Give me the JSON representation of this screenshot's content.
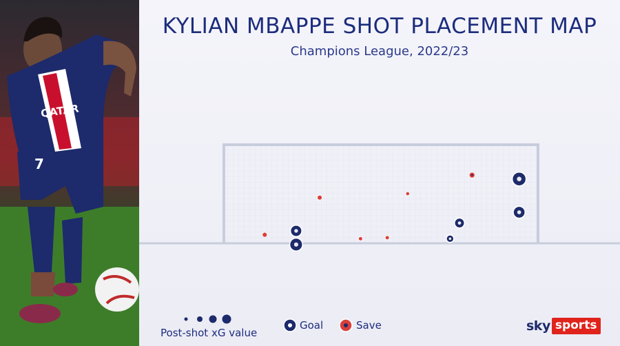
{
  "header": {
    "title": "KYLIAN MBAPPE SHOT PLACEMENT MAP",
    "subtitle": "Champions League, 2022/23"
  },
  "legend": {
    "size_label": "Post-shot xG value",
    "goal_label": "Goal",
    "save_label": "Save"
  },
  "brand": {
    "sky": "sky",
    "sports": "sports"
  },
  "colors": {
    "goal": "#1d2a6b",
    "save": "#d8403a",
    "accent": "#e0241c",
    "text": "#1c2c7c"
  },
  "chart_data": {
    "type": "scatter",
    "title": "KYLIAN MBAPPE SHOT PLACEMENT MAP",
    "subtitle": "Champions League, 2022/23",
    "size_encoding": "post-shot xG value",
    "categories": [
      "Goal",
      "Save"
    ],
    "shots": [
      {
        "outcome": "Goal",
        "x": 0.23,
        "y": 0.12,
        "xg": 0.75
      },
      {
        "outcome": "Goal",
        "x": 0.23,
        "y": -0.02,
        "xg": 0.9
      },
      {
        "outcome": "Goal",
        "x": 0.75,
        "y": 0.2,
        "xg": 0.6
      },
      {
        "outcome": "Goal",
        "x": 0.72,
        "y": 0.04,
        "xg": 0.35
      },
      {
        "outcome": "Goal",
        "x": 0.94,
        "y": 0.31,
        "xg": 0.8
      },
      {
        "outcome": "Goal",
        "x": 0.94,
        "y": 0.65,
        "xg": 1.0
      },
      {
        "outcome": "Save",
        "x": 0.13,
        "y": 0.08,
        "xg": 0.25
      },
      {
        "outcome": "Save",
        "x": 0.305,
        "y": 0.46,
        "xg": 0.25
      },
      {
        "outcome": "Save",
        "x": 0.435,
        "y": 0.04,
        "xg": 0.15
      },
      {
        "outcome": "Save",
        "x": 0.52,
        "y": 0.05,
        "xg": 0.15
      },
      {
        "outcome": "Save",
        "x": 0.585,
        "y": 0.5,
        "xg": 0.12
      },
      {
        "outcome": "Save",
        "x": 0.79,
        "y": 0.69,
        "xg": 0.35
      }
    ]
  }
}
